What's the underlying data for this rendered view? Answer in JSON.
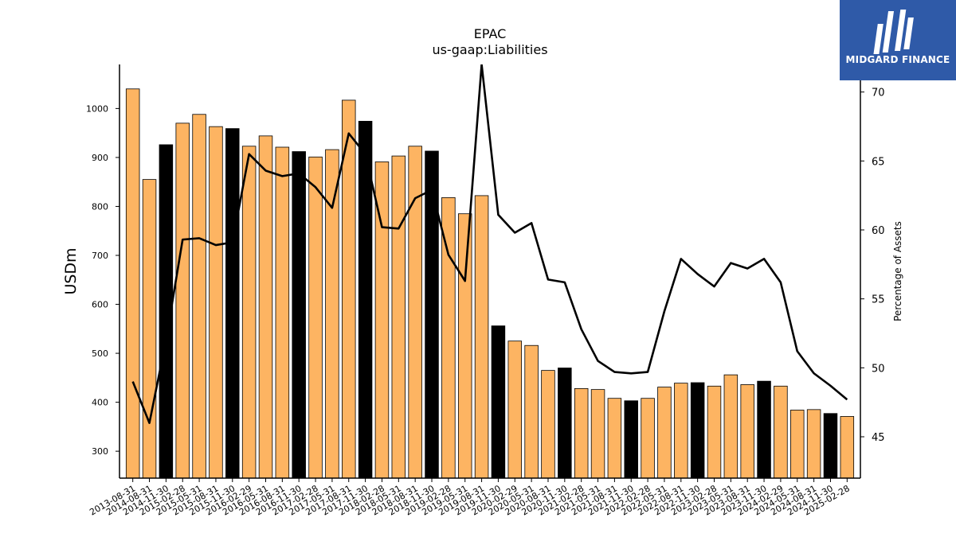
{
  "brand": {
    "name": "MIDGARD FINANCE",
    "color": "#2f5aa8"
  },
  "chart_data": {
    "type": "bar",
    "title": "EPAC",
    "subtitle": "us-gaap:Liabilities",
    "ylabel": "USDm",
    "y2label": "Percentage of Assets",
    "ylim": [
      245,
      1090
    ],
    "y2lim": [
      42,
      72
    ],
    "yticks": [
      300,
      400,
      500,
      600,
      700,
      800,
      900,
      1000
    ],
    "y2ticks": [
      45,
      50,
      55,
      60,
      65,
      70
    ],
    "bar_colors": {
      "default": "#fdb462",
      "highlight": "#000000"
    },
    "line_color": "#000000",
    "categories": [
      "2013-08-31",
      "2014-08-31",
      "2014-11-30",
      "2015-02-28",
      "2015-05-31",
      "2015-08-31",
      "2015-11-30",
      "2016-02-29",
      "2016-05-31",
      "2016-08-31",
      "2016-11-30",
      "2017-02-28",
      "2017-05-31",
      "2017-08-31",
      "2017-11-30",
      "2018-02-28",
      "2018-05-31",
      "2018-08-31",
      "2018-11-30",
      "2019-02-28",
      "2019-05-31",
      "2019-08-31",
      "2019-11-30",
      "2020-02-29",
      "2020-05-31",
      "2020-08-31",
      "2020-11-30",
      "2021-02-28",
      "2021-05-31",
      "2021-08-31",
      "2021-11-30",
      "2022-02-28",
      "2022-05-31",
      "2022-08-31",
      "2022-11-30",
      "2023-02-28",
      "2023-05-31",
      "2023-08-31",
      "2023-11-30",
      "2024-02-29",
      "2024-05-31",
      "2024-08-31",
      "2024-11-30",
      "2025-02-28"
    ],
    "series": [
      {
        "type": "bar",
        "values": [
          1040,
          855,
          926,
          970,
          988,
          963,
          959,
          923,
          944,
          921,
          912,
          901,
          916,
          1017,
          974,
          891,
          903,
          923,
          913,
          818,
          785,
          822,
          556,
          525,
          516,
          465,
          470,
          428,
          426,
          408,
          403,
          408,
          431,
          439,
          440,
          433,
          456,
          436,
          443,
          433,
          384,
          385,
          377,
          371
        ],
        "highlight": [
          false,
          false,
          true,
          false,
          false,
          false,
          true,
          false,
          false,
          false,
          true,
          false,
          false,
          false,
          true,
          false,
          false,
          false,
          true,
          false,
          false,
          false,
          true,
          false,
          false,
          false,
          true,
          false,
          false,
          false,
          true,
          false,
          false,
          false,
          true,
          false,
          false,
          false,
          true,
          false,
          false,
          false,
          true,
          false
        ]
      },
      {
        "type": "line",
        "axis": "right",
        "values": [
          49.0,
          46.0,
          52.0,
          59.3,
          59.4,
          58.9,
          59.1,
          65.5,
          64.3,
          63.9,
          64.1,
          63.1,
          61.6,
          67.0,
          65.5,
          60.2,
          60.1,
          62.3,
          62.9,
          58.2,
          56.3,
          72.0,
          61.1,
          59.8,
          60.5,
          56.4,
          56.2,
          52.8,
          50.5,
          49.7,
          49.6,
          49.7,
          54.1,
          57.9,
          56.8,
          55.9,
          57.6,
          57.2,
          57.9,
          56.2,
          51.2,
          49.6,
          48.7,
          47.7
        ]
      }
    ],
    "grid": false
  }
}
